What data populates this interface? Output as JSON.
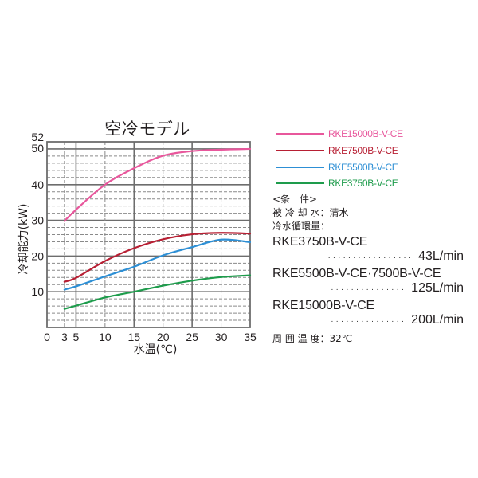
{
  "chart_data": {
    "type": "line",
    "title": "空冷モデル",
    "xlabel": "水温(℃)",
    "ylabel": "冷却能力(kW)",
    "xlim": [
      0,
      35
    ],
    "ylim": [
      0,
      52
    ],
    "x_ticks": [
      0,
      3,
      5,
      10,
      15,
      20,
      25,
      30,
      35
    ],
    "y_ticks": [
      10,
      20,
      30,
      40,
      50,
      52
    ],
    "grid": true,
    "legend_position": "right",
    "x": [
      3,
      5,
      10,
      15,
      20,
      25,
      30,
      35
    ],
    "series": [
      {
        "name": "RKE15000B-V-CE",
        "color": "#e8579c",
        "values": [
          29.8,
          33.0,
          40.0,
          44.6,
          48.1,
          49.4,
          49.8,
          50.0
        ]
      },
      {
        "name": "RKE7500B-V-CE",
        "color": "#b71f33",
        "values": [
          12.8,
          13.9,
          18.6,
          22.2,
          24.7,
          26.1,
          26.5,
          26.3
        ]
      },
      {
        "name": "RKE5500B-V-CE",
        "color": "#2d8fd5",
        "values": [
          10.6,
          11.5,
          14.3,
          17.0,
          20.2,
          22.5,
          24.6,
          23.9
        ]
      },
      {
        "name": "RKE3750B-V-CE",
        "color": "#1e9c4c",
        "values": [
          5.2,
          6.1,
          8.4,
          10.0,
          11.7,
          13.1,
          14.1,
          14.6
        ]
      }
    ]
  },
  "conditions": {
    "heading": "<条　件>",
    "coolant": "被 冷 却 水：清水",
    "flow_heading": "冷水循環量：",
    "flows": [
      {
        "model": "RKE3750B-V-CE",
        "dots": "·················",
        "value": "43L/min"
      },
      {
        "model": "RKE5500B-V-CE·7500B-V-CE",
        "dots": "···············",
        "value": "125L/min"
      },
      {
        "model": "RKE15000B-V-CE",
        "dots": "···············",
        "value": "200L/min"
      }
    ],
    "ambient": "周 囲 温 度：32℃"
  }
}
